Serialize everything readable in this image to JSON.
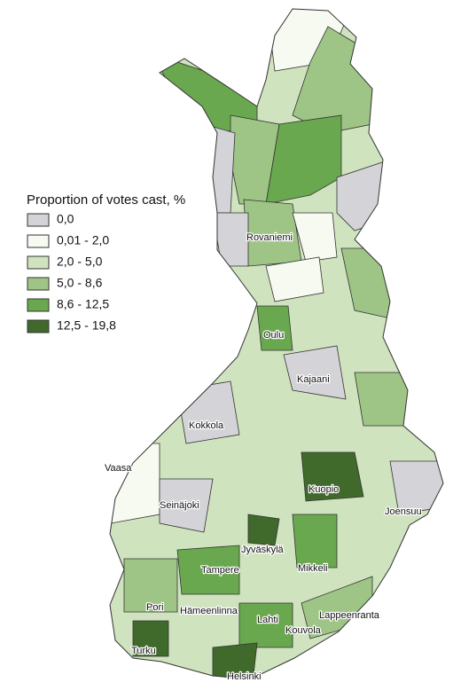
{
  "legend": {
    "title": "Proportion of votes cast, %",
    "items": [
      {
        "label": "0,0",
        "color": "#d4d4d8"
      },
      {
        "label": "0,01 - 2,0",
        "color": "#f6faf1"
      },
      {
        "label": "2,0 - 5,0",
        "color": "#cfe3bf"
      },
      {
        "label": "5,0 - 8,6",
        "color": "#9ec585"
      },
      {
        "label": "8,6 - 12,5",
        "color": "#6aa84f"
      },
      {
        "label": "12,5 - 19,8",
        "color": "#3f6a2b"
      }
    ]
  },
  "cities": [
    "Rovaniemi",
    "Oulu",
    "Kajaani",
    "Kokkola",
    "Vaasa",
    "Kuopio",
    "Seinäjoki",
    "Joensuu",
    "Jyväskylä",
    "Tampere",
    "Mikkeli",
    "Pori",
    "Hämeenlinna",
    "Lahti",
    "Lappeenranta",
    "Kouvola",
    "Turku",
    "Helsinki"
  ]
}
